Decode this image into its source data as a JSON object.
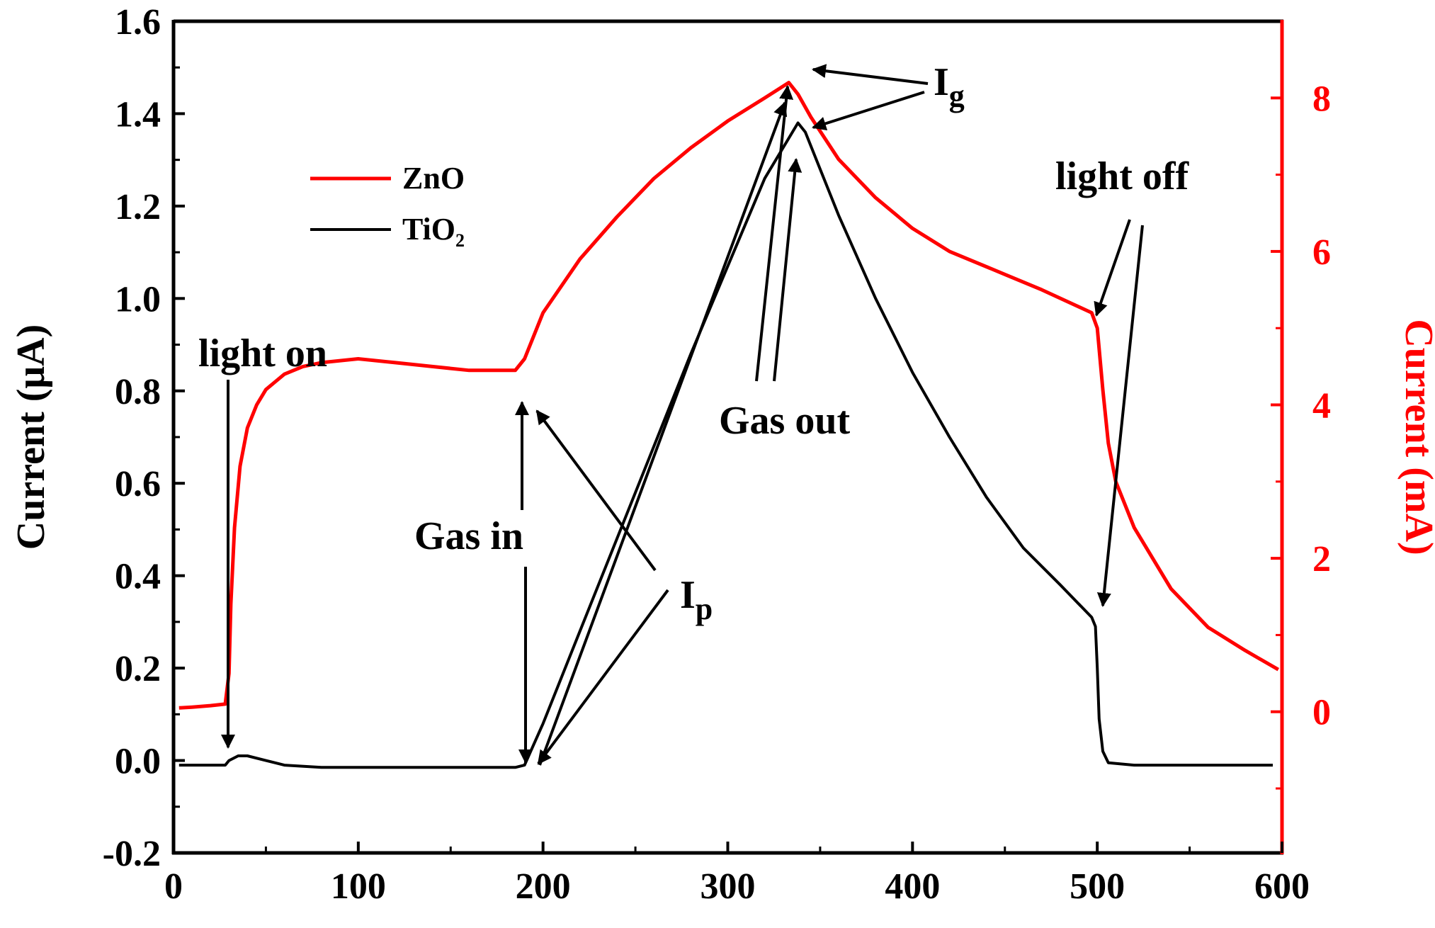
{
  "chart_data": {
    "type": "line",
    "title": "",
    "xlabel": "",
    "x_range": [
      0,
      600
    ],
    "x_ticks": [
      0,
      100,
      200,
      300,
      400,
      500,
      600
    ],
    "left_axis": {
      "label": "Current (μA)",
      "range": [
        -0.2,
        1.6
      ],
      "ticks": [
        "-0.2",
        "0.0",
        "0.2",
        "0.4",
        "0.6",
        "0.8",
        "1.0",
        "1.2",
        "1.4",
        "1.6"
      ],
      "color": "#000000"
    },
    "right_axis": {
      "label": "Current (mA)",
      "range": [
        -1.84,
        9.0
      ],
      "ticks": [
        "0",
        "2",
        "4",
        "6",
        "8"
      ],
      "color": "#ff0000"
    },
    "legend": {
      "placement": "top-left",
      "entries": [
        {
          "label": "ZnO",
          "color": "#ff0000"
        },
        {
          "label": "TiO",
          "subscript": "2",
          "color": "#000000"
        }
      ]
    },
    "series": [
      {
        "name": "ZnO",
        "axis": "right",
        "color": "#ff0000",
        "x": [
          3,
          10,
          20,
          28,
          30,
          31,
          33,
          36,
          40,
          45,
          50,
          55,
          60,
          70,
          80,
          100,
          120,
          140,
          160,
          185,
          190,
          200,
          220,
          240,
          260,
          280,
          300,
          320,
          333,
          338,
          345,
          360,
          380,
          400,
          420,
          450,
          470,
          497,
          500,
          503,
          506,
          510,
          520,
          540,
          560,
          580,
          598
        ],
        "y": [
          0.05,
          0.06,
          0.08,
          0.1,
          0.5,
          1.4,
          2.4,
          3.2,
          3.7,
          4.0,
          4.2,
          4.3,
          4.4,
          4.5,
          4.55,
          4.6,
          4.55,
          4.5,
          4.45,
          4.45,
          4.6,
          5.2,
          5.9,
          6.45,
          6.95,
          7.35,
          7.7,
          8.0,
          8.2,
          8.05,
          7.75,
          7.2,
          6.7,
          6.3,
          6.0,
          5.7,
          5.5,
          5.2,
          5.0,
          4.2,
          3.5,
          3.0,
          2.4,
          1.6,
          1.1,
          0.8,
          0.55
        ]
      },
      {
        "name": "TiO2",
        "axis": "left",
        "color": "#000000",
        "x": [
          3,
          15,
          28,
          30,
          35,
          40,
          50,
          60,
          80,
          100,
          130,
          160,
          185,
          190,
          200,
          220,
          240,
          260,
          280,
          300,
          320,
          338,
          342,
          350,
          360,
          380,
          400,
          420,
          440,
          460,
          480,
          497,
          499,
          500,
          501,
          503,
          506,
          520,
          560,
          595
        ],
        "y": [
          -0.01,
          -0.01,
          -0.01,
          0.0,
          0.01,
          0.01,
          0.0,
          -0.01,
          -0.015,
          -0.015,
          -0.015,
          -0.015,
          -0.015,
          -0.01,
          0.08,
          0.28,
          0.48,
          0.68,
          0.88,
          1.07,
          1.26,
          1.38,
          1.36,
          1.28,
          1.18,
          1.0,
          0.84,
          0.7,
          0.57,
          0.46,
          0.38,
          0.31,
          0.29,
          0.2,
          0.09,
          0.02,
          -0.005,
          -0.01,
          -0.01,
          -0.01
        ]
      }
    ],
    "annotations": [
      {
        "text": "light on"
      },
      {
        "text": "Gas in"
      },
      {
        "text": "Gas out"
      },
      {
        "text": "light off"
      },
      {
        "text": "I",
        "subscript": "p"
      },
      {
        "text": "I",
        "subscript": "g"
      }
    ]
  }
}
